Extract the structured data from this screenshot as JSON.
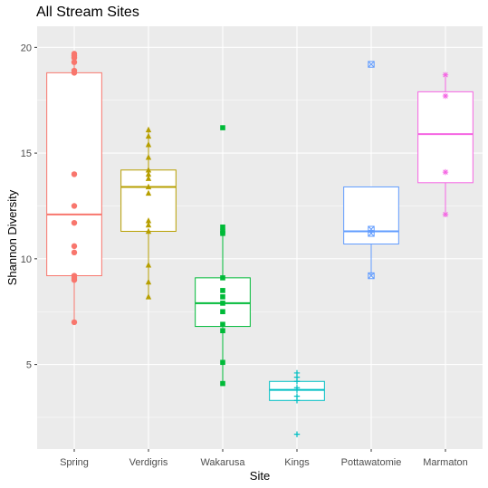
{
  "chart_data": {
    "type": "box",
    "title": "All Stream Sites",
    "xlabel": "Site",
    "ylabel": "Shannon Diversity",
    "ylim": [
      1,
      21
    ],
    "yticks": [
      5,
      10,
      15,
      20
    ],
    "grid": true,
    "legend": "none",
    "panel_background": "#ebebeb",
    "categories": [
      "Spring",
      "Verdigris",
      "Wakarusa",
      "Kings",
      "Pottawatomie",
      "Marmaton"
    ],
    "series": [
      {
        "category": "Spring",
        "color": "#f8766d",
        "marker": "circle",
        "whisker_low": 7.0,
        "q1": 9.2,
        "median": 12.1,
        "q3": 18.8,
        "whisker_high": 19.7,
        "points": [
          7.0,
          9.0,
          9.1,
          9.2,
          10.3,
          10.6,
          11.7,
          12.5,
          14.0,
          18.8,
          18.9,
          19.3,
          19.5,
          19.6,
          19.7
        ]
      },
      {
        "category": "Verdigris",
        "color": "#b79f00",
        "marker": "triangle",
        "whisker_low": 8.2,
        "q1": 11.3,
        "median": 13.4,
        "q3": 14.2,
        "whisker_high": 16.1,
        "points": [
          8.2,
          8.9,
          9.7,
          11.3,
          11.6,
          11.8,
          13.1,
          13.4,
          13.8,
          14.0,
          14.2,
          14.8,
          15.4,
          15.8,
          16.1
        ]
      },
      {
        "category": "Wakarusa",
        "color": "#00ba38",
        "marker": "square",
        "whisker_low": 4.1,
        "q1": 6.8,
        "median": 7.9,
        "q3": 9.1,
        "whisker_high": 11.5,
        "points": [
          4.1,
          5.1,
          6.6,
          6.9,
          7.5,
          7.9,
          8.2,
          8.5,
          9.1,
          11.2,
          11.3,
          11.5,
          16.2
        ]
      },
      {
        "category": "Kings",
        "color": "#00bfc4",
        "marker": "plus",
        "whisker_low": 3.3,
        "q1": 3.3,
        "median": 3.8,
        "q3": 4.2,
        "whisker_high": 4.6,
        "points": [
          1.7,
          3.3,
          3.5,
          3.8,
          3.9,
          4.2,
          4.4,
          4.6
        ]
      },
      {
        "category": "Pottawatomie",
        "color": "#619cff",
        "marker": "square-cross",
        "whisker_low": 9.2,
        "q1": 10.7,
        "median": 11.3,
        "q3": 13.4,
        "whisker_high": 13.4,
        "points": [
          9.2,
          11.2,
          11.4,
          19.2
        ]
      },
      {
        "category": "Marmaton",
        "color": "#f564e3",
        "marker": "asterisk",
        "whisker_low": 12.1,
        "q1": 13.6,
        "median": 15.9,
        "q3": 17.9,
        "whisker_high": 18.7,
        "points": [
          12.1,
          14.1,
          17.7,
          18.7
        ]
      }
    ]
  }
}
